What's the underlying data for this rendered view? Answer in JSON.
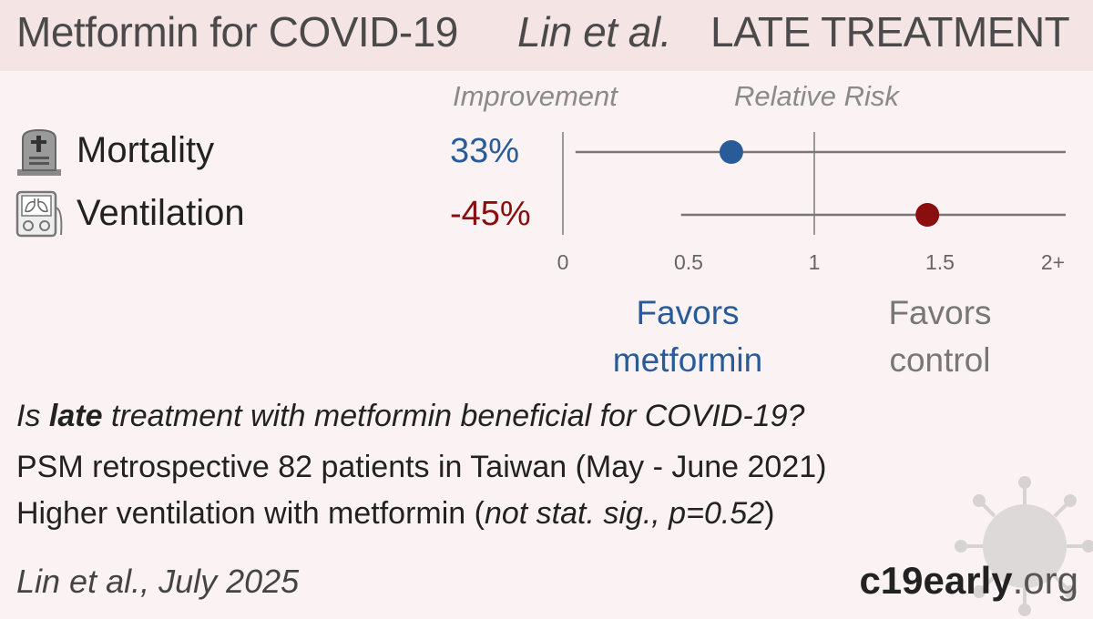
{
  "header": {
    "title": "Metformin for COVID-19",
    "authors": "Lin et al.",
    "stage": "LATE TREATMENT"
  },
  "columns": {
    "improvement": "Improvement",
    "relative_risk": "Relative Risk"
  },
  "rows": [
    {
      "icon": "tombstone-icon",
      "label": "Mortality",
      "improvement": "33%",
      "color": "#2a5b99"
    },
    {
      "icon": "ventilator-icon",
      "label": "Ventilation",
      "improvement": "-45%",
      "color": "#8b0e0e"
    }
  ],
  "chart_data": {
    "type": "scatter",
    "xlabel": "",
    "ylabel": "",
    "xlim": [
      0,
      2
    ],
    "x_ticks": [
      "0",
      "0.5",
      "1",
      "1.5",
      "2+"
    ],
    "reference_line": 1,
    "categories": [
      "Mortality",
      "Ventilation"
    ],
    "series": [
      {
        "values": [
          0.67,
          1.45
        ]
      }
    ],
    "point_colors": [
      "#2a5b99",
      "#8b0e0e"
    ],
    "ci": [
      [
        0.05,
        2.0
      ],
      [
        0.47,
        2.0
      ]
    ],
    "favors_left": "Favors\nmetformin",
    "favors_right": "Favors\ncontrol"
  },
  "favors": {
    "left_line1": "Favors",
    "left_line2": "metformin",
    "right_line1": "Favors",
    "right_line2": "control",
    "left_color": "#2a5b99",
    "right_color": "#777777"
  },
  "summary": {
    "q_pre": "Is ",
    "q_bold": "late",
    "q_post": " treatment with metformin beneficial for COVID-19?",
    "study": "PSM retrospective 82 patients in Taiwan (May - June 2021)",
    "result_pre": "Higher ventilation with metformin (",
    "result_ital": "not stat. sig., p=0.52",
    "result_post": ")"
  },
  "footer": {
    "citation": "Lin et al., July 2025",
    "brand_bold": "c19early",
    "brand_rest": ".org"
  }
}
